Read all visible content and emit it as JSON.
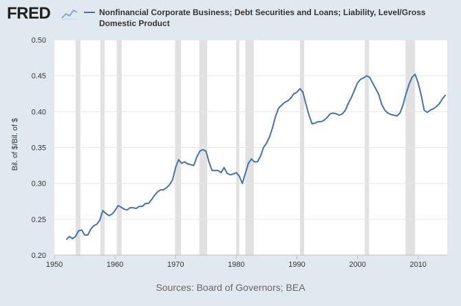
{
  "header": {
    "logo_text": "FRED",
    "logo_icon": "line-chart-icon"
  },
  "sources": "Sources: Board of Governors; BEA",
  "colors": {
    "background": "#e1e9f0",
    "plot_bg": "#ffffff",
    "line": "#4572a7",
    "recession": "#e1e1e1",
    "grid": "#e6e6e6"
  },
  "chart_data": {
    "type": "line",
    "title": "",
    "xlabel": "",
    "ylabel": "Bil. of $/Bil. of $",
    "xlim": [
      1950,
      2014.8
    ],
    "ylim": [
      0.2,
      0.5
    ],
    "x_ticks": [
      1950,
      1960,
      1970,
      1980,
      1990,
      2000,
      2010
    ],
    "x_tick_labels": [
      "1950",
      "1960",
      "1970",
      "1980",
      "1990",
      "2000",
      "2010"
    ],
    "y_ticks": [
      0.2,
      0.25,
      0.3,
      0.35,
      0.4,
      0.45,
      0.5
    ],
    "y_tick_labels": [
      "0.20",
      "0.25",
      "0.30",
      "0.35",
      "0.40",
      "0.45",
      "0.50"
    ],
    "grid": true,
    "legend_position": "top",
    "recessions": [
      [
        1953.5,
        1954.3
      ],
      [
        1957.6,
        1958.3
      ],
      [
        1960.3,
        1961.1
      ],
      [
        1969.9,
        1970.9
      ],
      [
        1973.9,
        1975.2
      ],
      [
        1980.0,
        1980.5
      ],
      [
        1981.5,
        1982.9
      ],
      [
        1990.5,
        1991.2
      ],
      [
        2001.2,
        2001.9
      ],
      [
        2007.9,
        2009.5
      ]
    ],
    "series": [
      {
        "name": "Nonfinancial Corporate Business; Debt Securities and Loans; Liability, Level/Gross Domestic Product",
        "x": [
          1952.0,
          1952.5,
          1953.0,
          1953.5,
          1954.0,
          1954.5,
          1955.0,
          1955.5,
          1956.0,
          1956.5,
          1957.0,
          1957.5,
          1958.0,
          1958.5,
          1959.0,
          1959.5,
          1960.0,
          1960.5,
          1961.0,
          1961.5,
          1962.0,
          1962.5,
          1963.0,
          1963.5,
          1964.0,
          1964.5,
          1965.0,
          1965.5,
          1966.0,
          1966.5,
          1967.0,
          1967.5,
          1968.0,
          1968.5,
          1969.0,
          1969.5,
          1970.0,
          1970.5,
          1971.0,
          1971.5,
          1972.0,
          1972.5,
          1973.0,
          1973.5,
          1974.0,
          1974.5,
          1975.0,
          1975.5,
          1976.0,
          1976.5,
          1977.0,
          1977.5,
          1978.0,
          1978.5,
          1979.0,
          1979.5,
          1980.0,
          1980.5,
          1981.0,
          1981.5,
          1982.0,
          1982.5,
          1983.0,
          1983.5,
          1984.0,
          1984.5,
          1985.0,
          1985.5,
          1986.0,
          1986.5,
          1987.0,
          1987.5,
          1988.0,
          1988.5,
          1989.0,
          1989.5,
          1990.0,
          1990.5,
          1991.0,
          1991.5,
          1992.0,
          1992.5,
          1993.0,
          1993.5,
          1994.0,
          1994.5,
          1995.0,
          1995.5,
          1996.0,
          1996.5,
          1997.0,
          1997.5,
          1998.0,
          1998.5,
          1999.0,
          1999.5,
          2000.0,
          2000.5,
          2001.0,
          2001.5,
          2002.0,
          2002.5,
          2003.0,
          2003.5,
          2004.0,
          2004.5,
          2005.0,
          2005.5,
          2006.0,
          2006.5,
          2007.0,
          2007.5,
          2008.0,
          2008.5,
          2009.0,
          2009.5,
          2010.0,
          2010.5,
          2011.0,
          2011.5,
          2012.0,
          2012.5,
          2013.0,
          2013.5,
          2014.0,
          2014.5
        ],
        "y": [
          0.222,
          0.226,
          0.223,
          0.226,
          0.234,
          0.235,
          0.228,
          0.228,
          0.236,
          0.241,
          0.243,
          0.249,
          0.262,
          0.258,
          0.255,
          0.257,
          0.262,
          0.269,
          0.267,
          0.264,
          0.263,
          0.266,
          0.266,
          0.265,
          0.268,
          0.268,
          0.272,
          0.272,
          0.277,
          0.283,
          0.288,
          0.291,
          0.291,
          0.294,
          0.298,
          0.305,
          0.322,
          0.333,
          0.328,
          0.33,
          0.327,
          0.326,
          0.325,
          0.337,
          0.345,
          0.347,
          0.345,
          0.33,
          0.318,
          0.318,
          0.318,
          0.315,
          0.322,
          0.314,
          0.312,
          0.313,
          0.315,
          0.31,
          0.3,
          0.314,
          0.328,
          0.334,
          0.33,
          0.33,
          0.338,
          0.35,
          0.356,
          0.365,
          0.378,
          0.394,
          0.405,
          0.409,
          0.413,
          0.415,
          0.419,
          0.425,
          0.427,
          0.432,
          0.427,
          0.41,
          0.395,
          0.383,
          0.384,
          0.386,
          0.386,
          0.388,
          0.392,
          0.397,
          0.398,
          0.397,
          0.395,
          0.397,
          0.402,
          0.412,
          0.42,
          0.43,
          0.44,
          0.445,
          0.447,
          0.45,
          0.448,
          0.44,
          0.432,
          0.424,
          0.41,
          0.402,
          0.398,
          0.396,
          0.395,
          0.394,
          0.398,
          0.409,
          0.425,
          0.438,
          0.448,
          0.452,
          0.44,
          0.423,
          0.402,
          0.399,
          0.402,
          0.404,
          0.407,
          0.411,
          0.418,
          0.423
        ]
      }
    ]
  }
}
